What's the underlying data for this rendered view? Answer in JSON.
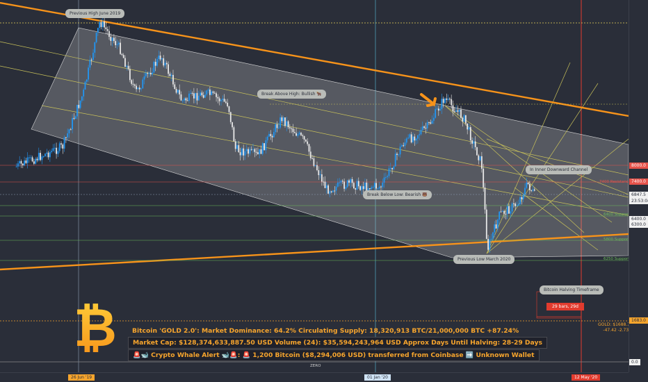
{
  "callouts": {
    "prev_high": "Previous High June 2019",
    "break_above": "Break Above High: Bullish 🐂",
    "break_below": "Break Below Low: Bearish 🐻",
    "inner_channel": "In Inner Downward Channel",
    "prev_low": "Previous Low March 2020",
    "halving_label": "Bitcoin Halving Timeframe",
    "halving_bars": "29 bars, 29d"
  },
  "info": {
    "line1": "Bitcoin 'GOLD 2.0': Market Dominance: 64.2%  Circulating Supply: 18,320,913 BTC/21,000,000 BTC +87.24%",
    "line2": "Market Cap: $128,374,633,887.50 USD Volume (24): $35,594,243,964 USD Approx Days Until Halving: 28-29 Days",
    "line3": "🚨🐋 Crypto Whale Alert 🐋🚨: 🚨 1,200 Bitcoin ($8,294,006 USD) transferred from Coinbase ➡️ Unknown Wallet"
  },
  "levels": {
    "l7400": "7400 Resistance",
    "l6400": "6400 Support",
    "l6300": "6300 Support",
    "l5800": "5800 Support",
    "l6250": "6250 Support",
    "gold": "GOLD: $1688.78",
    "gold_change": "-47.42 -2.73%",
    "zero": "ZERO"
  },
  "price_axis": {
    "p8000": "8000.0",
    "p7400": "7400.0",
    "current": "6847.5",
    "countdown": "23:53:04",
    "p6400": "6400.0",
    "p6300": "6300.0",
    "gold": "1683.0",
    "zero": "0.0"
  },
  "time_axis": {
    "d1": "26 Jun '19",
    "d2": "01 Jan '20",
    "d3": "12 May '20"
  },
  "colors": {
    "background": "#2a2e39",
    "channel_orange": "#f7931a",
    "channel_fill": "#c8c8c8",
    "fib_yellow": "#c9c25a",
    "bull": "#2196f3",
    "bear": "#e8e8e8",
    "resistance": "#e5534b",
    "support": "#6dbd5b",
    "halving_red": "#e23b2e"
  },
  "chart_data": {
    "type": "candlestick",
    "symbol": "BTCUSD",
    "series": [
      {
        "date": "2019-05",
        "close": 7900
      },
      {
        "date": "2019-06-01",
        "close": 8600
      },
      {
        "date": "2019-06-15",
        "close": 10500
      },
      {
        "date": "2019-06-26",
        "close": 13000
      },
      {
        "date": "2019-07-10",
        "close": 12000
      },
      {
        "date": "2019-07-20",
        "close": 10500
      },
      {
        "date": "2019-08-06",
        "close": 11800
      },
      {
        "date": "2019-08-20",
        "close": 10200
      },
      {
        "date": "2019-09-05",
        "close": 10500
      },
      {
        "date": "2019-09-20",
        "close": 10100
      },
      {
        "date": "2019-09-25",
        "close": 8500
      },
      {
        "date": "2019-10-10",
        "close": 8300
      },
      {
        "date": "2019-10-26",
        "close": 9600
      },
      {
        "date": "2019-11-10",
        "close": 8800
      },
      {
        "date": "2019-11-25",
        "close": 7100
      },
      {
        "date": "2019-12-10",
        "close": 7300
      },
      {
        "date": "2019-12-20",
        "close": 7200
      },
      {
        "date": "2020-01-01",
        "close": 7200
      },
      {
        "date": "2020-01-15",
        "close": 8700
      },
      {
        "date": "2020-02-01",
        "close": 9300
      },
      {
        "date": "2020-02-12",
        "close": 10300
      },
      {
        "date": "2020-02-25",
        "close": 9600
      },
      {
        "date": "2020-03-08",
        "close": 8000
      },
      {
        "date": "2020-03-12",
        "close": 5000
      },
      {
        "date": "2020-03-20",
        "close": 6200
      },
      {
        "date": "2020-04-01",
        "close": 6600
      },
      {
        "date": "2020-04-08",
        "close": 7300
      },
      {
        "date": "2020-04-13",
        "close": 6847.5
      }
    ],
    "marked_levels": [
      8000,
      7400,
      6400,
      6300
    ],
    "current_price": 6847.5,
    "gold_price": 1688.78
  }
}
